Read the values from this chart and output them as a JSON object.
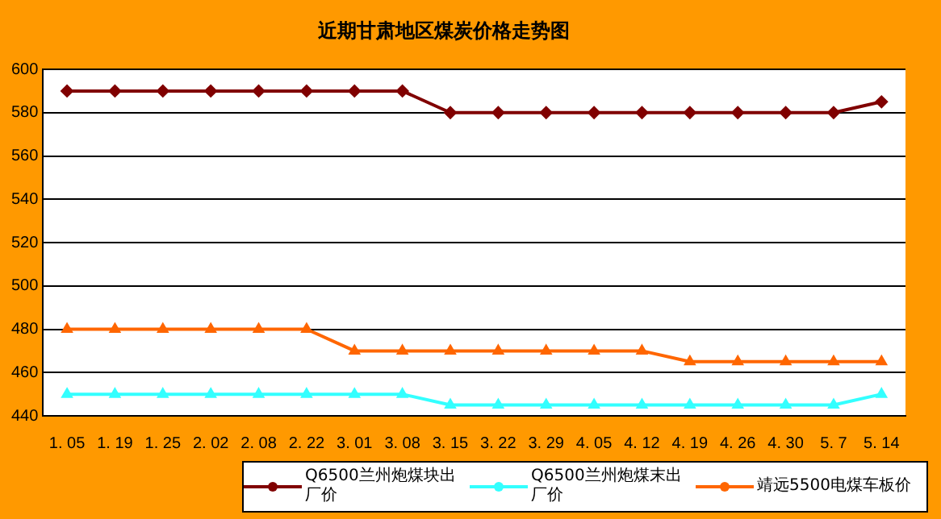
{
  "chart_data": {
    "type": "line",
    "title": "近期甘肃地区煤炭价格走势图",
    "categories": [
      "1. 05",
      "1. 19",
      "1. 25",
      "2. 02",
      "2. 08",
      "2. 22",
      "3. 01",
      "3. 08",
      "3. 15",
      "3. 22",
      "3. 29",
      "4. 05",
      "4. 12",
      "4. 19",
      "4. 26",
      "4. 30",
      "5. 7",
      "5. 14"
    ],
    "series": [
      {
        "name": "Q6500兰州炮煤块出厂价",
        "color": "#800000",
        "marker": "diamond",
        "values": [
          590,
          590,
          590,
          590,
          590,
          590,
          590,
          590,
          580,
          580,
          580,
          580,
          580,
          580,
          580,
          580,
          580,
          585
        ]
      },
      {
        "name": "Q6500兰州炮煤末出厂价",
        "color": "#33ffff",
        "marker": "triangle",
        "values": [
          450,
          450,
          450,
          450,
          450,
          450,
          450,
          450,
          445,
          445,
          445,
          445,
          445,
          445,
          445,
          445,
          445,
          450
        ]
      },
      {
        "name": "靖远5500电煤车板价",
        "color": "#ff6600",
        "marker": "triangle",
        "values": [
          480,
          480,
          480,
          480,
          480,
          480,
          470,
          470,
          470,
          470,
          470,
          470,
          470,
          465,
          465,
          465,
          465,
          465
        ]
      }
    ],
    "ylim": [
      440,
      600
    ],
    "yticks": [
      440,
      460,
      480,
      500,
      520,
      540,
      560,
      580,
      600
    ],
    "grid": "y",
    "legend": "bottom",
    "line_style": "solid"
  }
}
